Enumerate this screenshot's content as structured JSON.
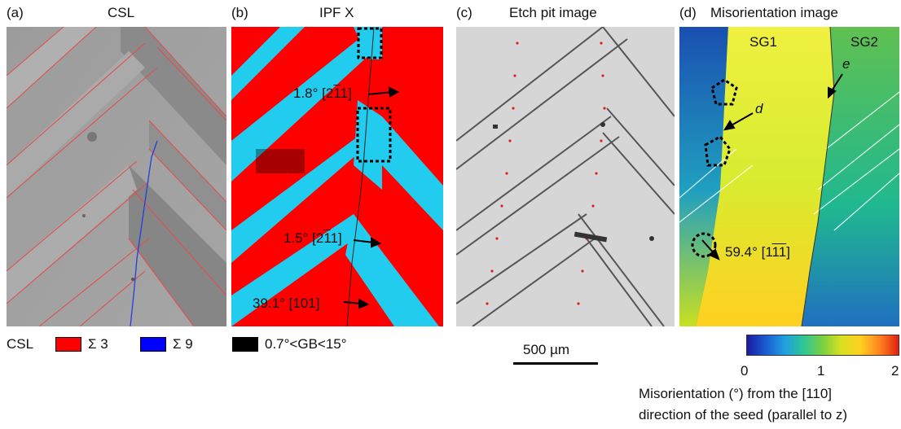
{
  "panels": [
    {
      "letter": "(a)",
      "title": "CSL"
    },
    {
      "letter": "(b)",
      "title": "IPF X"
    },
    {
      "letter": "(c)",
      "title": "Etch pit image"
    },
    {
      "letter": "(d)",
      "title": "Misorientation image"
    }
  ],
  "annotations_b": {
    "a1_pre": "1.8° [2",
    "a1_bar": "1",
    "a1_post": "1]",
    "a2_pre": "1.5° [2",
    "a2_bar": "1",
    "a2_post": "1]",
    "a3": "39.1° [101]"
  },
  "annotations_d": {
    "sg1": "SG1",
    "sg2": "SG2",
    "e": "e",
    "d": "d",
    "a_pre": "59.4° [1",
    "a_bar": "11",
    "a_post": "]"
  },
  "legend": {
    "title": "CSL",
    "sigma3": "Σ 3",
    "sigma9": "Σ 9",
    "gb": "0.7°<GB<15°",
    "sigma3_color": "#ff0000",
    "sigma9_color": "#0000ff",
    "gb_color": "#000000"
  },
  "scalebar": {
    "label": "500 µm"
  },
  "colorbar": {
    "ticks": [
      "0",
      "1",
      "2"
    ],
    "caption_line1": "Misorientation (°) from the [110]",
    "caption_line2": "direction of the seed (parallel to z)"
  }
}
